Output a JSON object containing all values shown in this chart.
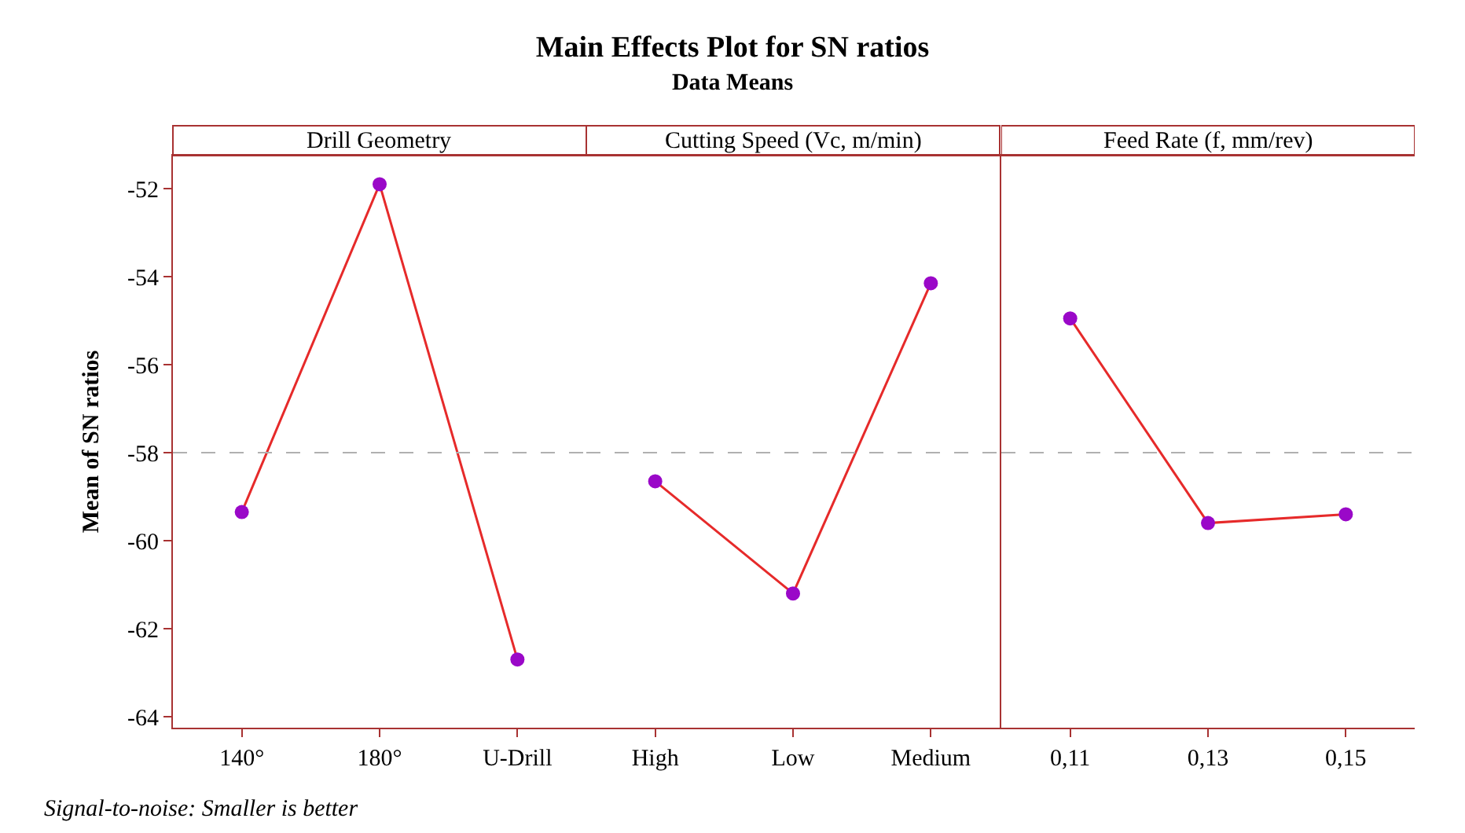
{
  "chart_data": [
    {
      "type": "line",
      "title": "Drill Geometry",
      "ylabel": "Mean of SN ratios",
      "annotations": [
        "Main Effects Plot for SN ratios",
        "Data Means",
        "Signal-to-noise: Smaller is better"
      ],
      "categories": [
        "140°",
        "180°",
        "U-Drill"
      ],
      "series": [
        {
          "color": "#e62a2a",
          "colors": [
            "#9a08c8",
            "#9a08c8",
            "#9a08c8"
          ],
          "values": [
            -59.35,
            -51.9,
            -62.7
          ]
        }
      ],
      "ylim": [
        -64.25,
        -51.25
      ],
      "yticks": [
        -64,
        -62,
        -60,
        -58,
        -56,
        -54,
        -52
      ],
      "marker": "circle",
      "grid": false,
      "ref_lines": [
        {
          "axis": "y",
          "value": -58,
          "color": "#b0b0b0",
          "line_style": "dashed"
        }
      ]
    },
    {
      "type": "line",
      "title": "Cutting Speed (Vc, m/min)",
      "categories": [
        "High",
        "Low",
        "Medium"
      ],
      "series": [
        {
          "color": "#e62a2a",
          "colors": [
            "#9a08c8",
            "#9a08c8",
            "#9a08c8"
          ],
          "values": [
            -58.65,
            -61.2,
            -54.15
          ]
        }
      ],
      "ylim": [
        -64.25,
        -51.25
      ],
      "tick_labels": "x",
      "marker": "circle",
      "grid": false,
      "ref_lines": [
        {
          "axis": "y",
          "value": -58,
          "color": "#b0b0b0",
          "line_style": "dashed"
        }
      ]
    },
    {
      "type": "line",
      "title": "Feed Rate (f, mm/rev)",
      "categories": [
        "0,11",
        "0,13",
        "0,15"
      ],
      "series": [
        {
          "color": "#e62a2a",
          "colors": [
            "#9a08c8",
            "#9a08c8",
            "#9a08c8"
          ],
          "values": [
            -54.95,
            -59.6,
            -59.4
          ]
        }
      ],
      "ylim": [
        -64.25,
        -51.25
      ],
      "tick_labels": "x",
      "marker": "circle",
      "grid": false,
      "ref_lines": [
        {
          "axis": "y",
          "value": -58,
          "color": "#b0b0b0",
          "line_style": "dashed"
        }
      ]
    }
  ]
}
